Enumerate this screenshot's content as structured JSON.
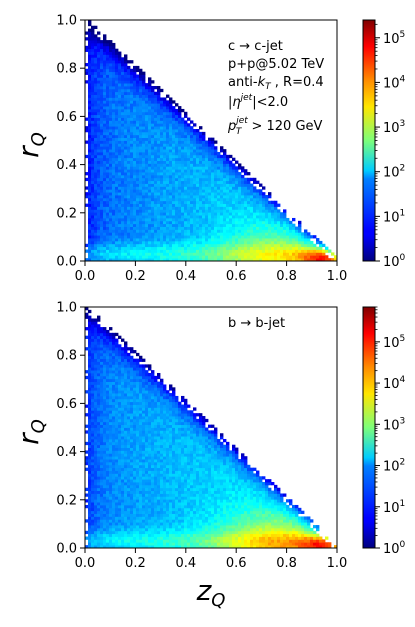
{
  "chart_data": [
    {
      "type": "heatmap",
      "panel": "top",
      "xlim": [
        0.0,
        1.0
      ],
      "ylim": [
        0.0,
        1.0
      ],
      "x_ticks": [
        "0.0",
        "0.2",
        "0.4",
        "0.6",
        "0.8",
        "1.0"
      ],
      "y_ticks": [
        "0.0",
        "0.2",
        "0.4",
        "0.6",
        "0.8",
        "1.0"
      ],
      "ylabel": "r",
      "ylabel_sub": "Q",
      "xlabel": "",
      "colorbar": {
        "scale": "log",
        "range": [
          1,
          250000
        ],
        "colormap": "jet",
        "tick_values": [
          1,
          10,
          100,
          1000,
          10000,
          100000
        ],
        "tick_base": "10",
        "tick_exponents": [
          "0",
          "1",
          "2",
          "3",
          "4",
          "5"
        ]
      },
      "annotations": {
        "process": "c → c-jet",
        "system": "p+p@5.02 TeV",
        "algo_pre": "anti-",
        "algo_k": "k",
        "algo_sub": "T",
        "algo_post": " , R=0.4",
        "eta_pre": "|",
        "eta_sym": "η",
        "eta_sup": "jet",
        "eta_post": "|<2.0",
        "pt_sym": "p",
        "pt_sub": "T",
        "pt_sup": "jet",
        "pt_post": " > 120 GeV"
      },
      "density_model": {
        "description_boundary": "populated region r_Q <= 1 - z_Q",
        "peak_counts": 250000,
        "peak_location": [
          0.97,
          0.01
        ]
      }
    },
    {
      "type": "heatmap",
      "panel": "bottom",
      "xlim": [
        0.0,
        1.0
      ],
      "ylim": [
        0.0,
        1.0
      ],
      "x_ticks": [
        "0.0",
        "0.2",
        "0.4",
        "0.6",
        "0.8",
        "1.0"
      ],
      "y_ticks": [
        "0.0",
        "0.2",
        "0.4",
        "0.6",
        "0.8",
        "1.0"
      ],
      "ylabel": "r",
      "ylabel_sub": "Q",
      "xlabel": "z",
      "xlabel_sub": "Q",
      "colorbar": {
        "scale": "log",
        "range": [
          1,
          700000
        ],
        "colormap": "jet",
        "tick_values": [
          1,
          10,
          100,
          1000,
          10000,
          100000
        ],
        "tick_base": "10",
        "tick_exponents": [
          "0",
          "1",
          "2",
          "3",
          "4",
          "5"
        ]
      },
      "annotations": {
        "process": "b → b-jet"
      },
      "density_model": {
        "peak_counts": 700000,
        "peak_location": [
          0.97,
          0.01
        ]
      }
    }
  ]
}
